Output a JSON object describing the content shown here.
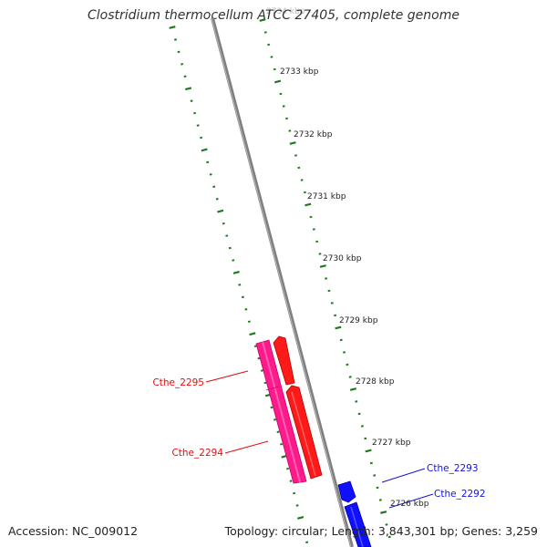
{
  "title": "Clostridium thermocellum ATCC 27405, complete genome",
  "footer": {
    "accession": "Accession: NC_009012",
    "topology": "Topology: circular; Length: 3,843,301 bp; Genes: 3,259"
  },
  "colors": {
    "backbone": "#8a8a8a",
    "ticks": "#1f7a1f",
    "reverse_gene_a": "#ff1a8c",
    "reverse_gene_b": "#ff1a1a",
    "forward_gene": "#1010ff",
    "label_red": "#e01010",
    "label_blue": "#1414dd"
  },
  "ticks": [
    {
      "label": "2734 kbp",
      "faded": true
    },
    {
      "label": "2733 kbp"
    },
    {
      "label": "2732 kbp"
    },
    {
      "label": "2731 kbp"
    },
    {
      "label": "2730 kbp"
    },
    {
      "label": "2729 kbp"
    },
    {
      "label": "2728 kbp"
    },
    {
      "label": "2727 kbp"
    },
    {
      "label": "2726 kbp"
    }
  ],
  "genes": [
    {
      "label": "Cthe_2295",
      "color": "red"
    },
    {
      "label": "Cthe_2294",
      "color": "red"
    },
    {
      "label": "Cthe_2293",
      "color": "blue"
    },
    {
      "label": "Cthe_2292",
      "color": "blue"
    }
  ]
}
